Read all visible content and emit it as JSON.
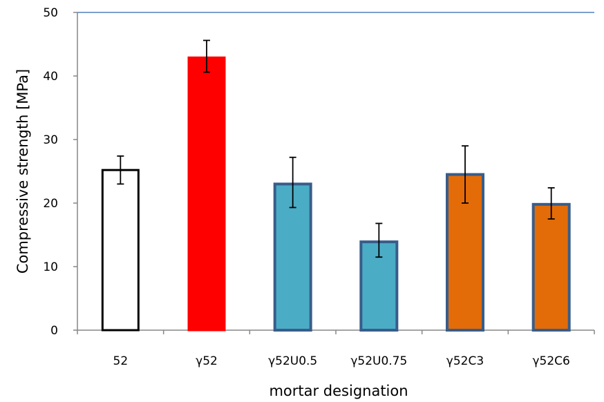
{
  "chart_data": {
    "type": "bar",
    "xlabel": "mortar designation",
    "ylabel": "Compressive strength [MPa]",
    "ylim": [
      0,
      50
    ],
    "yticks": [
      0,
      10,
      20,
      30,
      40,
      50
    ],
    "grid": false,
    "categories": [
      "52",
      "γ52",
      "γ52U0.5",
      "γ52U0.75",
      "γ52C3",
      "γ52C6"
    ],
    "values": [
      25.2,
      42.9,
      23.0,
      13.9,
      24.5,
      19.8
    ],
    "error_low": [
      23.0,
      40.6,
      19.3,
      11.5,
      20.0,
      17.5
    ],
    "error_high": [
      27.4,
      45.6,
      27.2,
      16.8,
      29.0,
      22.4
    ],
    "bar_fills": [
      "#ffffff",
      "#ff0000",
      "#4bacc6",
      "#4bacc6",
      "#e36c09",
      "#e36c09"
    ],
    "bar_edges": [
      "#000000",
      "#ff0000",
      "#385d8a",
      "#385d8a",
      "#385d8a",
      "#385d8a"
    ],
    "top_border_color": "#4f81bd"
  }
}
